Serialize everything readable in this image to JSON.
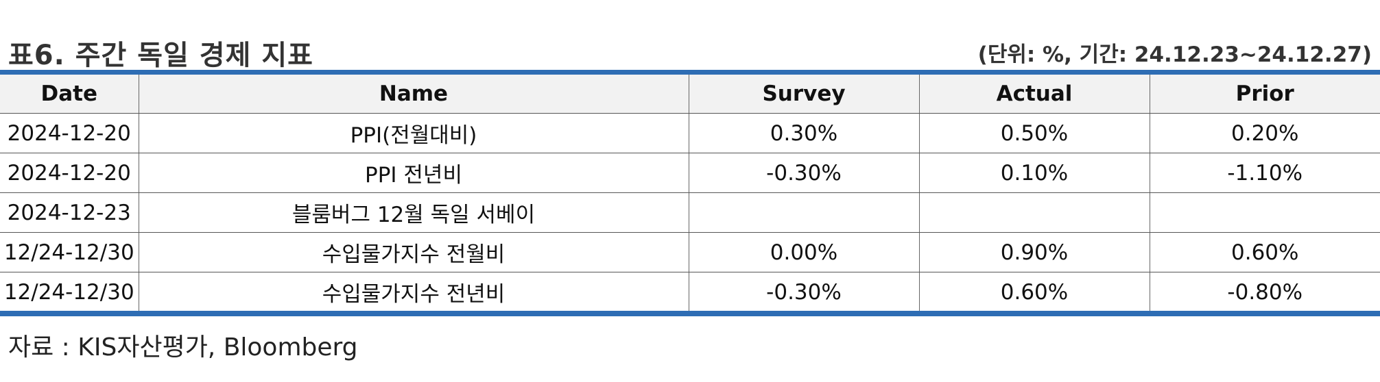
{
  "header": {
    "title": "표6. 주간 독일 경제 지표",
    "unit_note": "(단위: %, 기간: 24.12.23~24.12.27)"
  },
  "table": {
    "columns": [
      "Date",
      "Name",
      "Survey",
      "Actual",
      "Prior"
    ],
    "rows": [
      [
        "2024-12-20",
        "PPI(전월대비)",
        "0.30%",
        "0.50%",
        "0.20%"
      ],
      [
        "2024-12-20",
        "PPI 전년비",
        "-0.30%",
        "0.10%",
        "-1.10%"
      ],
      [
        "2024-12-23",
        "블룸버그 12월 독일 서베이",
        "",
        "",
        ""
      ],
      [
        "12/24-12/30",
        "수입물가지수 전월비",
        "0.00%",
        "0.90%",
        "0.60%"
      ],
      [
        "12/24-12/30",
        "수입물가지수 전년비",
        "-0.30%",
        "0.60%",
        "-0.80%"
      ]
    ]
  },
  "footer": {
    "source": "자료 : KIS자산평가, Bloomberg"
  },
  "colors": {
    "accent_rule": "#2e6db4",
    "header_background": "#f2f2f2"
  }
}
